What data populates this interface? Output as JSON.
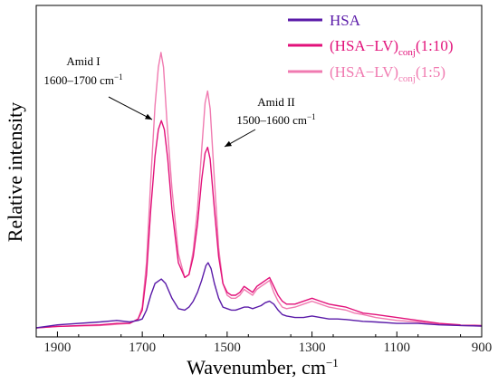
{
  "chart_data": {
    "type": "line",
    "title": "",
    "xlabel": "Wavenumber, cm",
    "xlabel_sup": "−1",
    "ylabel": "Relative intensity",
    "xlim": [
      1950,
      900
    ],
    "ylim": [
      0,
      1.0
    ],
    "x_reversed": true,
    "x_ticks": [
      1900,
      1700,
      1500,
      1300,
      1100,
      900
    ],
    "x_tick_labels": [
      "1900",
      "1700",
      "1500",
      "1300",
      "1100",
      "900"
    ],
    "y_tick_labels": false,
    "grid": false,
    "legend_position": "top-right",
    "legend": [
      {
        "main": "HSA",
        "sub": "",
        "rest": ""
      },
      {
        "main": "(HSA−LV)",
        "sub": "conj",
        "rest": "(1:10)"
      },
      {
        "main": "(HSA−LV)",
        "sub": "conj",
        "rest": "(1:5)"
      }
    ],
    "annotations": [
      {
        "line1": "Amid I",
        "line2": "1600–1700 cm",
        "sup": "−1",
        "points_to": 1655
      },
      {
        "line1": "Amid II",
        "line2": "1500–1600 cm",
        "sup": "−1",
        "points_to": 1545
      }
    ],
    "series": [
      {
        "name": "HSA",
        "color": "#5a1aa8",
        "x": [
          1950,
          1900,
          1800,
          1760,
          1730,
          1710,
          1700,
          1690,
          1680,
          1670,
          1660,
          1655,
          1645,
          1630,
          1615,
          1600,
          1590,
          1580,
          1570,
          1560,
          1550,
          1545,
          1538,
          1530,
          1520,
          1510,
          1500,
          1490,
          1480,
          1470,
          1460,
          1450,
          1440,
          1430,
          1420,
          1410,
          1400,
          1390,
          1380,
          1370,
          1360,
          1340,
          1320,
          1300,
          1280,
          1260,
          1240,
          1220,
          1200,
          1180,
          1150,
          1100,
          1050,
          1000,
          950,
          900
        ],
        "y": [
          0.0,
          0.01,
          0.02,
          0.025,
          0.02,
          0.025,
          0.03,
          0.06,
          0.11,
          0.15,
          0.16,
          0.165,
          0.15,
          0.1,
          0.065,
          0.06,
          0.07,
          0.09,
          0.12,
          0.16,
          0.21,
          0.22,
          0.2,
          0.15,
          0.1,
          0.07,
          0.065,
          0.06,
          0.06,
          0.065,
          0.07,
          0.07,
          0.065,
          0.07,
          0.075,
          0.085,
          0.09,
          0.08,
          0.06,
          0.045,
          0.04,
          0.035,
          0.035,
          0.04,
          0.035,
          0.03,
          0.03,
          0.028,
          0.025,
          0.022,
          0.02,
          0.015,
          0.015,
          0.01,
          0.008,
          0.006
        ]
      },
      {
        "name": "(HSA−LV)conj(1:10)",
        "color": "#e2117a",
        "x": [
          1950,
          1900,
          1800,
          1760,
          1730,
          1710,
          1700,
          1690,
          1680,
          1670,
          1662,
          1655,
          1648,
          1640,
          1630,
          1615,
          1600,
          1590,
          1580,
          1570,
          1560,
          1552,
          1546,
          1540,
          1530,
          1520,
          1510,
          1500,
          1490,
          1480,
          1470,
          1460,
          1450,
          1440,
          1430,
          1420,
          1410,
          1400,
          1390,
          1380,
          1370,
          1360,
          1340,
          1320,
          1300,
          1280,
          1260,
          1240,
          1220,
          1200,
          1180,
          1150,
          1100,
          1050,
          1000,
          950,
          900
        ],
        "y": [
          0.0,
          0.005,
          0.01,
          0.015,
          0.015,
          0.03,
          0.06,
          0.18,
          0.4,
          0.58,
          0.67,
          0.7,
          0.67,
          0.57,
          0.4,
          0.22,
          0.17,
          0.18,
          0.24,
          0.35,
          0.5,
          0.59,
          0.61,
          0.57,
          0.4,
          0.24,
          0.15,
          0.12,
          0.11,
          0.11,
          0.12,
          0.14,
          0.13,
          0.12,
          0.14,
          0.15,
          0.16,
          0.17,
          0.14,
          0.11,
          0.09,
          0.08,
          0.08,
          0.09,
          0.1,
          0.09,
          0.08,
          0.075,
          0.07,
          0.06,
          0.05,
          0.045,
          0.035,
          0.025,
          0.015,
          0.01,
          0.008
        ]
      },
      {
        "name": "(HSA−LV)conj(1:5)",
        "color": "#f07ab0",
        "x": [
          1950,
          1900,
          1800,
          1760,
          1730,
          1710,
          1700,
          1690,
          1680,
          1670,
          1662,
          1656,
          1650,
          1642,
          1630,
          1615,
          1600,
          1590,
          1580,
          1570,
          1560,
          1552,
          1546,
          1540,
          1530,
          1520,
          1510,
          1500,
          1490,
          1480,
          1470,
          1460,
          1450,
          1440,
          1430,
          1420,
          1410,
          1400,
          1390,
          1380,
          1370,
          1360,
          1340,
          1320,
          1300,
          1280,
          1260,
          1240,
          1220,
          1200,
          1180,
          1150,
          1100,
          1050,
          1000,
          950,
          900
        ],
        "y": [
          0.0,
          0.005,
          0.008,
          0.012,
          0.015,
          0.03,
          0.07,
          0.22,
          0.5,
          0.75,
          0.88,
          0.93,
          0.88,
          0.7,
          0.47,
          0.25,
          0.17,
          0.18,
          0.26,
          0.4,
          0.6,
          0.76,
          0.8,
          0.74,
          0.5,
          0.27,
          0.15,
          0.11,
          0.1,
          0.1,
          0.11,
          0.13,
          0.12,
          0.11,
          0.13,
          0.14,
          0.15,
          0.16,
          0.12,
          0.09,
          0.07,
          0.065,
          0.07,
          0.08,
          0.09,
          0.08,
          0.07,
          0.065,
          0.06,
          0.05,
          0.045,
          0.035,
          0.025,
          0.02,
          0.012,
          0.008,
          0.006
        ]
      }
    ]
  }
}
